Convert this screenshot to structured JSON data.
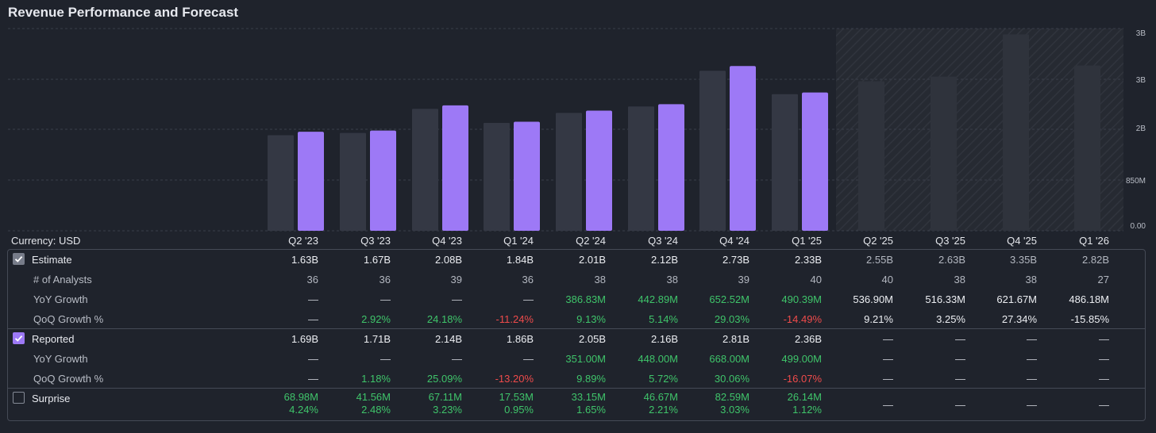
{
  "title": "Revenue Performance and Forecast",
  "currency_label": "Currency: USD",
  "colors": {
    "reported": "#9d79f6",
    "estimate": "#343844",
    "forecast": "#2f333c",
    "positive": "#3fc46a",
    "negative": "#ef4b4b"
  },
  "quarters": [
    "Q2 '23",
    "Q3 '23",
    "Q4 '23",
    "Q1 '24",
    "Q2 '24",
    "Q3 '24",
    "Q4 '24",
    "Q1 '25",
    "Q2 '25",
    "Q3 '25",
    "Q4 '25",
    "Q1 '26"
  ],
  "chart_data": {
    "type": "bar",
    "title": "Revenue Performance and Forecast",
    "categories": [
      "Q2 '23",
      "Q3 '23",
      "Q4 '23",
      "Q1 '24",
      "Q2 '24",
      "Q3 '24",
      "Q4 '24",
      "Q1 '25",
      "Q2 '25",
      "Q3 '25",
      "Q4 '25",
      "Q1 '26"
    ],
    "series": [
      {
        "name": "Estimate",
        "values": [
          1.63,
          1.67,
          2.08,
          1.84,
          2.01,
          2.12,
          2.73,
          2.33,
          2.55,
          2.63,
          3.35,
          2.82
        ]
      },
      {
        "name": "Reported",
        "values": [
          1.69,
          1.71,
          2.14,
          1.86,
          2.05,
          2.16,
          2.81,
          2.36,
          null,
          null,
          null,
          null
        ]
      }
    ],
    "forecast_from_category": "Q2 '25",
    "y_ticks": [
      "0.00",
      "850M",
      "2B",
      "3B",
      "3B"
    ],
    "ylim": [
      0,
      3.45
    ],
    "y_unit": "B",
    "grid": true
  },
  "table": {
    "estimate": {
      "label": "Estimate",
      "values": [
        "1.63B",
        "1.67B",
        "2.08B",
        "1.84B",
        "2.01B",
        "2.12B",
        "2.73B",
        "2.33B",
        "2.55B",
        "2.63B",
        "3.35B",
        "2.82B"
      ],
      "analysts_label": "# of Analysts",
      "analysts": [
        "36",
        "36",
        "39",
        "36",
        "38",
        "38",
        "39",
        "40",
        "40",
        "38",
        "38",
        "27"
      ],
      "yoy_label": "YoY Growth",
      "yoy": [
        "—",
        "—",
        "—",
        "—",
        "386.83M",
        "442.89M",
        "652.52M",
        "490.39M",
        "536.90M",
        "516.33M",
        "621.67M",
        "486.18M"
      ],
      "qoq_label": "QoQ Growth %",
      "qoq": [
        "—",
        "2.92%",
        "24.18%",
        "-11.24%",
        "9.13%",
        "5.14%",
        "29.03%",
        "-14.49%",
        "9.21%",
        "3.25%",
        "27.34%",
        "-15.85%"
      ]
    },
    "reported": {
      "label": "Reported",
      "values": [
        "1.69B",
        "1.71B",
        "2.14B",
        "1.86B",
        "2.05B",
        "2.16B",
        "2.81B",
        "2.36B",
        "—",
        "—",
        "—",
        "—"
      ],
      "yoy_label": "YoY Growth",
      "yoy": [
        "—",
        "—",
        "—",
        "—",
        "351.00M",
        "448.00M",
        "668.00M",
        "499.00M",
        "—",
        "—",
        "—",
        "—"
      ],
      "qoq_label": "QoQ Growth %",
      "qoq": [
        "—",
        "1.18%",
        "25.09%",
        "-13.20%",
        "9.89%",
        "5.72%",
        "30.06%",
        "-16.07%",
        "—",
        "—",
        "—",
        "—"
      ]
    },
    "surprise": {
      "label": "Surprise",
      "amount": [
        "68.98M",
        "41.56M",
        "67.11M",
        "17.53M",
        "33.15M",
        "46.67M",
        "82.59M",
        "26.14M",
        "—",
        "—",
        "—",
        "—"
      ],
      "pct": [
        "4.24%",
        "2.48%",
        "3.23%",
        "0.95%",
        "1.65%",
        "2.21%",
        "3.03%",
        "1.12%",
        "",
        "",
        "",
        ""
      ]
    }
  }
}
